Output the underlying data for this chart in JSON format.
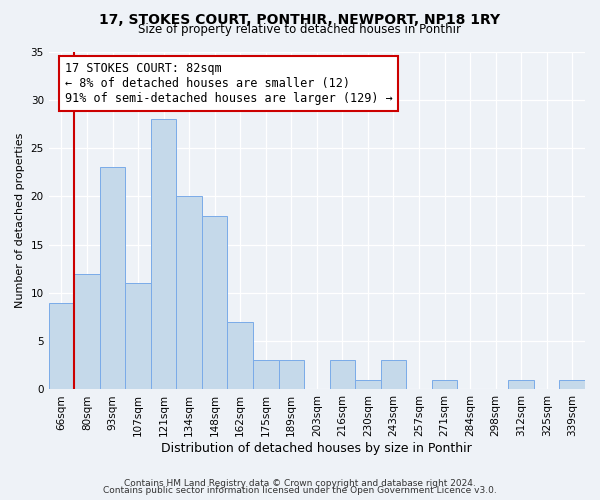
{
  "title": "17, STOKES COURT, PONTHIR, NEWPORT, NP18 1RY",
  "subtitle": "Size of property relative to detached houses in Ponthir",
  "xlabel": "Distribution of detached houses by size in Ponthir",
  "ylabel": "Number of detached properties",
  "footer_line1": "Contains HM Land Registry data © Crown copyright and database right 2024.",
  "footer_line2": "Contains public sector information licensed under the Open Government Licence v3.0.",
  "bin_labels": [
    "66sqm",
    "80sqm",
    "93sqm",
    "107sqm",
    "121sqm",
    "134sqm",
    "148sqm",
    "162sqm",
    "175sqm",
    "189sqm",
    "203sqm",
    "216sqm",
    "230sqm",
    "243sqm",
    "257sqm",
    "271sqm",
    "284sqm",
    "298sqm",
    "312sqm",
    "325sqm",
    "339sqm"
  ],
  "bar_heights": [
    9,
    12,
    23,
    11,
    28,
    20,
    18,
    7,
    3,
    3,
    0,
    3,
    1,
    3,
    0,
    1,
    0,
    0,
    1,
    0,
    1
  ],
  "bar_color": "#c5d9ea",
  "bar_edge_color": "#7aabe8",
  "ylim": [
    0,
    35
  ],
  "yticks": [
    0,
    5,
    10,
    15,
    20,
    25,
    30,
    35
  ],
  "annotation_title": "17 STOKES COURT: 82sqm",
  "annotation_line1": "← 8% of detached houses are smaller (12)",
  "annotation_line2": "91% of semi-detached houses are larger (129) →",
  "annotation_box_facecolor": "#ffffff",
  "annotation_box_edgecolor": "#cc0000",
  "red_line_color": "#cc0000",
  "background_color": "#eef2f7",
  "grid_color": "#ffffff",
  "title_fontsize": 10,
  "subtitle_fontsize": 8.5,
  "xlabel_fontsize": 9,
  "ylabel_fontsize": 8,
  "tick_fontsize": 7.5,
  "footer_fontsize": 6.5
}
